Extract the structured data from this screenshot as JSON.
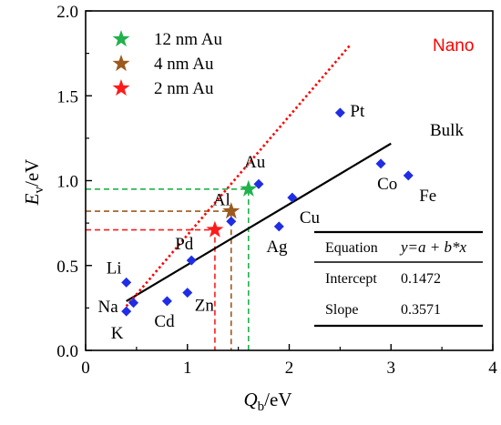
{
  "chart_data": {
    "type": "scatter",
    "xlabel": {
      "main": "Q",
      "sub": "b",
      "rest": "/eV"
    },
    "ylabel": {
      "main": "E",
      "sub": "v",
      "rest": "/eV"
    },
    "xlim": [
      0,
      4
    ],
    "ylim": [
      0.0,
      2.0
    ],
    "x_ticks": [
      "0",
      "1",
      "2",
      "3",
      "4"
    ],
    "y_ticks": [
      "0.0",
      "0.5",
      "1.0",
      "1.5",
      "2.0"
    ],
    "grid": false,
    "legend_placement": "top-left",
    "points": [
      {
        "label": "Pt",
        "x": 2.5,
        "y": 1.4
      },
      {
        "label": "Co",
        "x": 2.9,
        "y": 1.1
      },
      {
        "label": "Fe",
        "x": 3.17,
        "y": 1.03
      },
      {
        "label": "Au",
        "x": 1.7,
        "y": 0.98
      },
      {
        "label": "Cu",
        "x": 2.03,
        "y": 0.9
      },
      {
        "label": "Al",
        "x": 1.43,
        "y": 0.76
      },
      {
        "label": "Ag",
        "x": 1.9,
        "y": 0.73
      },
      {
        "label": "Pd",
        "x": 1.04,
        "y": 0.53
      },
      {
        "label": "Li",
        "x": 0.4,
        "y": 0.4
      },
      {
        "label": "Zn",
        "x": 1.0,
        "y": 0.34
      },
      {
        "label": "Cd",
        "x": 0.8,
        "y": 0.29
      },
      {
        "label": "Na",
        "x": 0.47,
        "y": 0.28
      },
      {
        "label": "K",
        "x": 0.4,
        "y": 0.23
      }
    ],
    "series": [
      {
        "name": "Bulk",
        "kind": "fit-line",
        "x": [
          0.4,
          3.0
        ],
        "y": [
          0.29,
          1.2185
        ],
        "color": "#000000"
      },
      {
        "name": "Nano",
        "kind": "dotted-line",
        "x": [
          0.4,
          2.6
        ],
        "y": [
          0.26,
          1.8
        ],
        "color": "#ff0000"
      }
    ],
    "nano_points": [
      {
        "name": "12 nm Au",
        "x": 1.6,
        "y": 0.95,
        "color": "#22b14c"
      },
      {
        "name": "4 nm Au",
        "x": 1.43,
        "y": 0.82,
        "color": "#9c5a1e"
      },
      {
        "name": "2 nm Au",
        "x": 1.27,
        "y": 0.71,
        "color": "#ff1a1a"
      }
    ],
    "fit_table": {
      "rows": [
        {
          "key": "Equation",
          "value": "y=a + b*x"
        },
        {
          "key": "Intercept",
          "value": "0.1472"
        },
        {
          "key": "Slope",
          "value": "0.3571"
        }
      ]
    },
    "colors": {
      "points": "#1f2de6",
      "bulk": "#000000",
      "nano": "#ff0000"
    }
  }
}
